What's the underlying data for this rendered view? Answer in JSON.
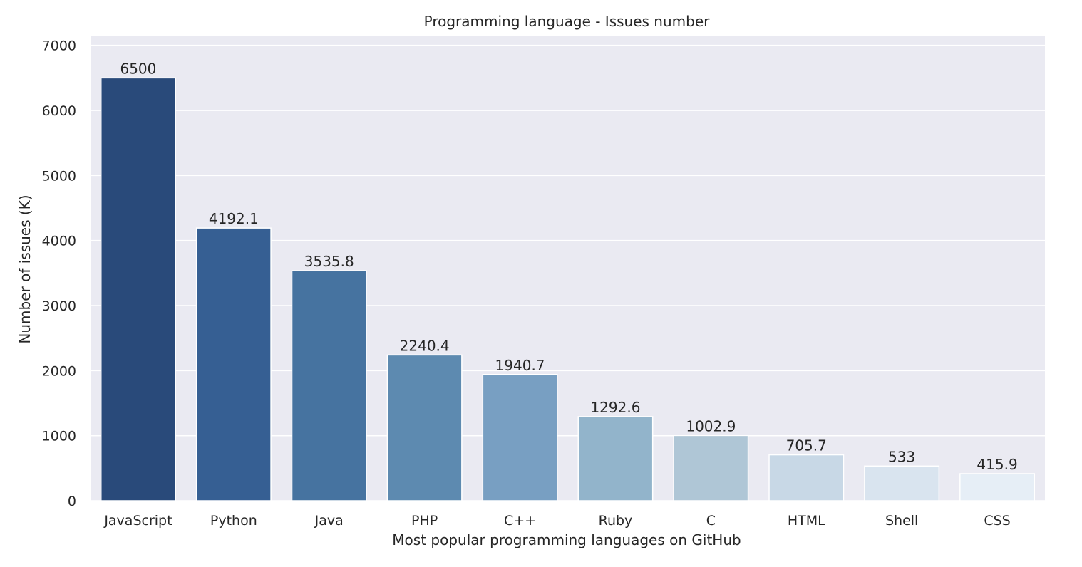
{
  "chart_data": {
    "type": "bar",
    "title": "Programming language - Issues number",
    "xlabel": "Most popular programming languages on GitHub",
    "ylabel": "Number of issues (K)",
    "categories": [
      "JavaScript",
      "Python",
      "Java",
      "PHP",
      "C++",
      "Ruby",
      "C",
      "HTML",
      "Shell",
      "CSS"
    ],
    "values": [
      6500,
      4192.1,
      3535.8,
      2240.4,
      1940.7,
      1292.6,
      1002.9,
      705.7,
      533,
      415.9
    ],
    "data_labels": [
      "6500",
      "4192.1",
      "3535.8",
      "2240.4",
      "1940.7",
      "1292.6",
      "1002.9",
      "705.7",
      "533",
      "415.9"
    ],
    "ylim": [
      0,
      7000
    ],
    "yticks": [
      0,
      1000,
      2000,
      3000,
      4000,
      5000,
      6000,
      7000
    ],
    "grid": true,
    "legend": "none",
    "colors": [
      "#294a7a",
      "#365f93",
      "#4673a0",
      "#5d8ab0",
      "#789fc2",
      "#92b4cb",
      "#afc6d6",
      "#c8d8e6",
      "#d9e4ef",
      "#e6eef6"
    ],
    "plot_background": "#eaeaf2",
    "grid_color": "#ffffff"
  }
}
